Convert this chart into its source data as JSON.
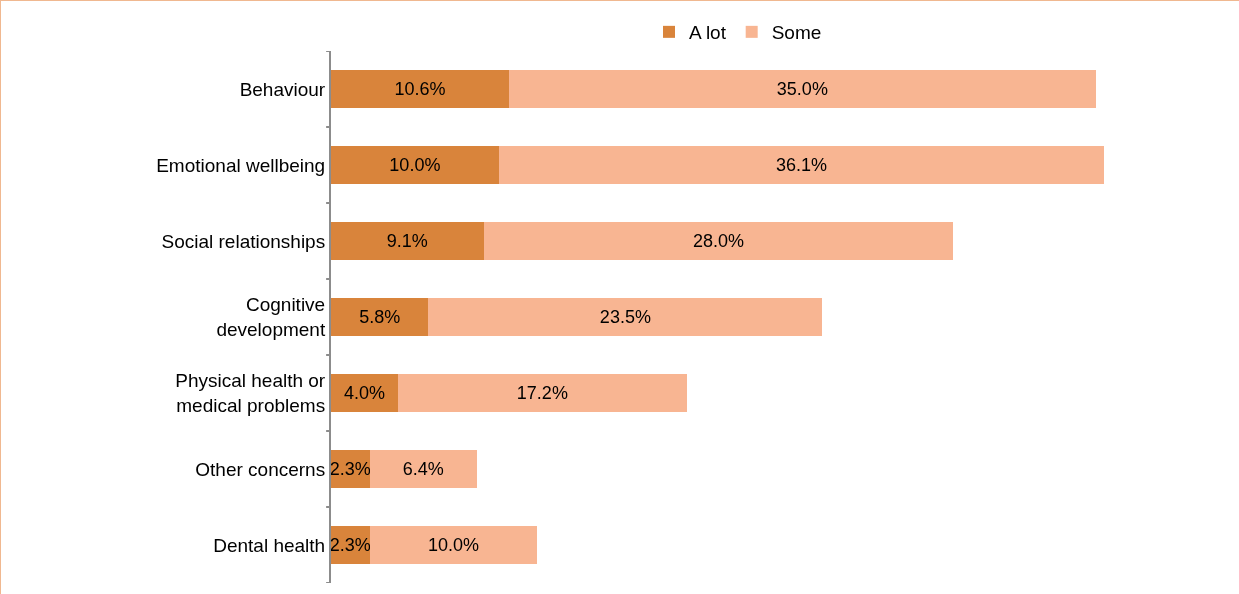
{
  "chart_data": {
    "type": "bar",
    "orientation": "horizontal",
    "stacked": true,
    "legend": "top",
    "categories": [
      "Behaviour",
      "Emotional wellbeing",
      "Social relationships",
      "Cognitive development",
      "Physical health or medical problems",
      "Other concerns",
      "Dental health"
    ],
    "series": [
      {
        "name": "A lot",
        "color": "#d9843b",
        "values": [
          10.6,
          10.0,
          9.1,
          5.8,
          4.0,
          2.3,
          2.3
        ],
        "value_labels": [
          "10.6%",
          "10.0%",
          "9.1%",
          "5.8%",
          "4.0%",
          "2.3%",
          "2.3%"
        ]
      },
      {
        "name": "Some",
        "color": "#f8b592",
        "values": [
          35.0,
          36.1,
          28.0,
          23.5,
          17.2,
          6.4,
          10.0
        ],
        "value_labels": [
          "35.0%",
          "36.1%",
          "28.0%",
          "23.5%",
          "17.2%",
          "6.4%",
          "10.0%"
        ]
      }
    ]
  }
}
